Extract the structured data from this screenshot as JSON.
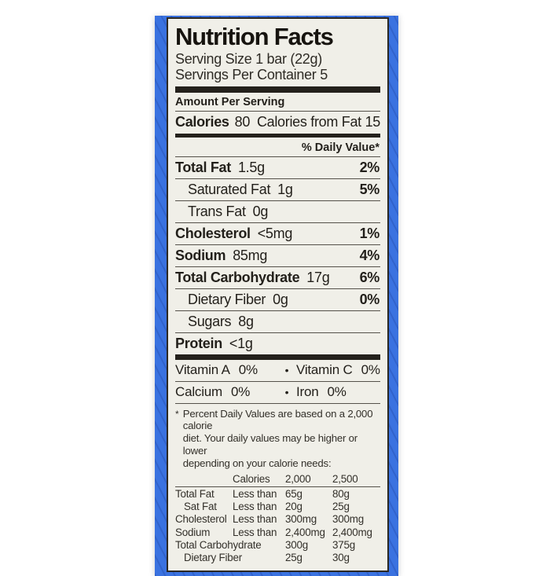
{
  "label": {
    "title": "Nutrition Facts",
    "serving_size": "Serving Size 1 bar (22g)",
    "servings_per_container": "Servings Per Container 5",
    "amount_per_serving": "Amount Per Serving",
    "calories": {
      "label": "Calories",
      "value": "80",
      "from_fat": "Calories from Fat 15"
    },
    "daily_value_header": "% Daily Value*",
    "nutrients": [
      {
        "name": "Total Fat",
        "amount": "1.5g",
        "dv": "2%"
      },
      {
        "name": "Saturated Fat",
        "amount": "1g",
        "dv": "5%"
      },
      {
        "name": "Trans Fat",
        "amount": "0g",
        "dv": ""
      },
      {
        "name": "Cholesterol",
        "amount": "<5mg",
        "dv": "1%"
      },
      {
        "name": "Sodium",
        "amount": "85mg",
        "dv": "4%"
      },
      {
        "name": "Total Carbohydrate",
        "amount": "17g",
        "dv": "6%"
      },
      {
        "name": "Dietary Fiber",
        "amount": "0g",
        "dv": "0%"
      },
      {
        "name": "Sugars",
        "amount": "8g",
        "dv": ""
      },
      {
        "name": "Protein",
        "amount": "<1g",
        "dv": ""
      }
    ],
    "vitamins": {
      "bullet": "•",
      "rows": [
        {
          "a_name": "Vitamin A",
          "a_val": "0%",
          "b_name": "Vitamin C",
          "b_val": "0%"
        },
        {
          "a_name": "Calcium",
          "a_val": "0%",
          "b_name": "Iron",
          "b_val": "0%"
        }
      ]
    },
    "footnote": {
      "marker": "*",
      "lines": [
        "Percent Daily Values are based on a 2,000 calorie",
        "diet. Your daily values may be higher or lower",
        "depending on your calorie needs:"
      ]
    },
    "footer_table": {
      "header": {
        "calories": "Calories",
        "c2000": "2,000",
        "c2500": "2,500"
      },
      "rows": [
        {
          "name": "Total Fat",
          "cond": "Less than",
          "v1": "65g",
          "v2": "80g"
        },
        {
          "name": "Sat Fat",
          "cond": "Less than",
          "v1": "20g",
          "v2": "25g"
        },
        {
          "name": "Cholesterol",
          "cond": "Less than",
          "v1": "300mg",
          "v2": "300mg"
        },
        {
          "name": "Sodium",
          "cond": "Less than",
          "v1": "2,400mg",
          "v2": "2,400mg"
        },
        {
          "name": "Total Carbohydrate",
          "cond": "",
          "v1": "300g",
          "v2": "375g"
        },
        {
          "name": "Dietary Fiber",
          "cond": "",
          "v1": "25g",
          "v2": "30g"
        }
      ]
    },
    "colors": {
      "package_blue": "#3a72e0",
      "label_background": "#f0efe8",
      "ink": "#221f1a"
    }
  }
}
